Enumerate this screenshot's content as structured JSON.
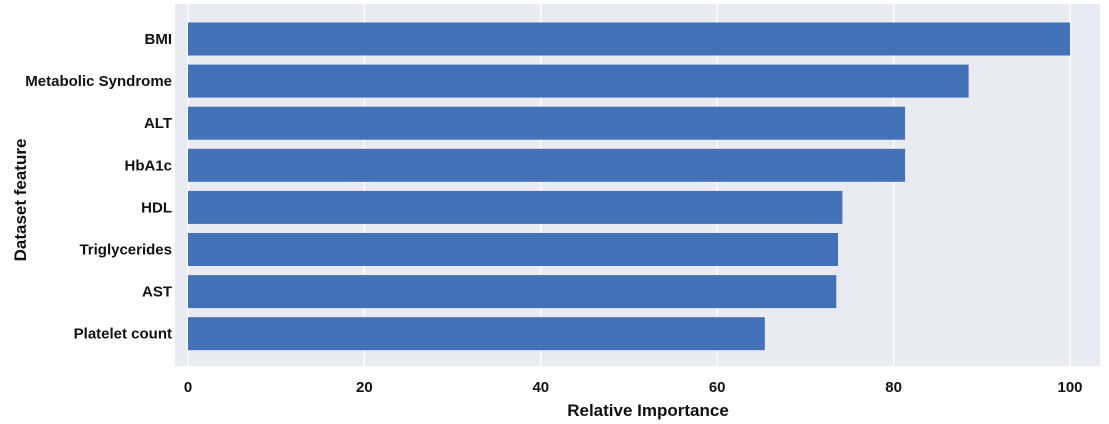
{
  "chart_data": {
    "type": "bar",
    "orientation": "horizontal",
    "categories": [
      "BMI",
      "Metabolic Syndrome",
      "ALT",
      "HbA1c",
      "HDL",
      "Triglycerides",
      "AST",
      "Platelet count"
    ],
    "values": [
      100,
      88.5,
      81.3,
      81.3,
      74.2,
      73.7,
      73.5,
      65.4
    ],
    "xlabel": "Relative Importance",
    "ylabel": "Dataset feature",
    "xlim": [
      0,
      105
    ],
    "xticks": [
      0,
      20,
      40,
      60,
      80,
      100
    ],
    "grid": true,
    "colors": {
      "bar": "#4372b8",
      "plot_background": "#eaeaf2",
      "grid": "#ffffff"
    }
  }
}
